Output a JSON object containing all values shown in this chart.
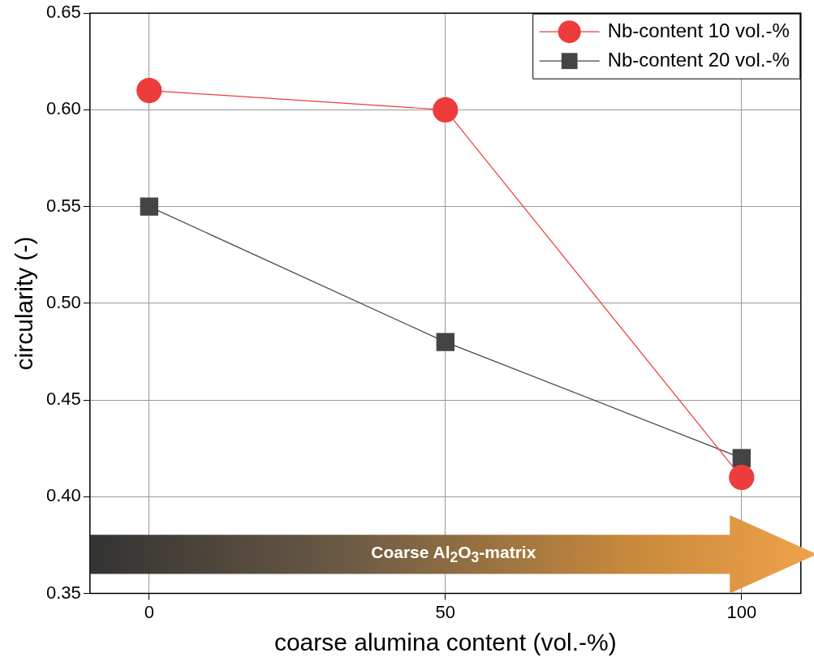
{
  "chart_data": {
    "type": "line",
    "xlabel": "coarse alumina content (vol.-%)",
    "ylabel": "circularity (-)",
    "x": [
      0,
      50,
      100
    ],
    "series": [
      {
        "name": "Nb-content 10 vol.-%",
        "color": "#ee3b3b",
        "values": [
          0.61,
          0.6,
          0.41
        ],
        "marker": "circle"
      },
      {
        "name": "Nb-content 20 vol.-%",
        "color": "#444444",
        "values": [
          0.55,
          0.48,
          0.42
        ],
        "marker": "square"
      }
    ],
    "xlim": [
      -10,
      110
    ],
    "xticks": [
      0,
      50,
      100
    ],
    "ylim": [
      0.35,
      0.65
    ],
    "yticks": [
      0.35,
      {
        "value": 0.4,
        "label": "0.40"
      },
      0.45,
      {
        "value": 0.5,
        "label": "0.50"
      },
      0.55,
      {
        "value": 0.6,
        "label": "0.60"
      },
      0.65
    ],
    "grid": true,
    "legend": "top right",
    "line_style": "solid",
    "annotations": [
      "Coarse Al$_{2}$O$_{3}$-matrix"
    ]
  }
}
